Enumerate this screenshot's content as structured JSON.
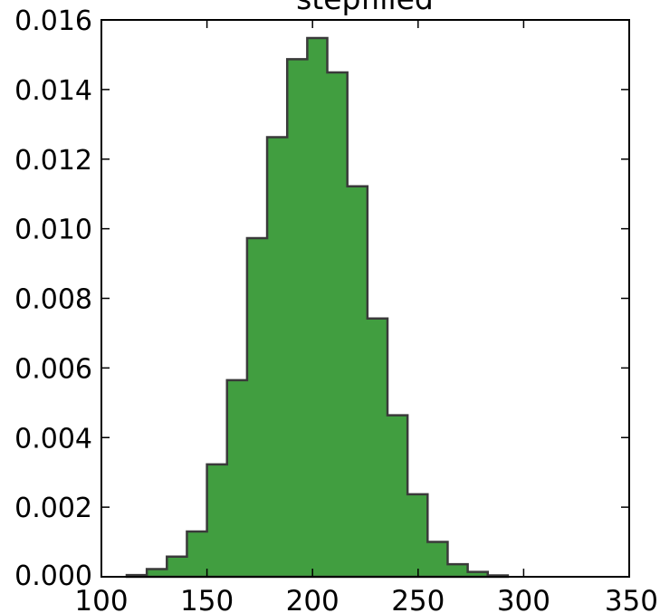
{
  "chart_data": {
    "type": "histogram",
    "histtype": "stepfilled",
    "title": "stepfilled",
    "xlabel": "",
    "ylabel": "",
    "xlim": [
      100,
      350
    ],
    "ylim": [
      0,
      0.016
    ],
    "grid": false,
    "xticks": [
      100,
      150,
      200,
      250,
      300,
      350
    ],
    "xtick_labels": [
      "100",
      "150",
      "200",
      "250",
      "300",
      "350"
    ],
    "yticks": [
      0,
      0.002,
      0.004,
      0.006,
      0.008,
      0.01,
      0.012,
      0.014,
      0.016
    ],
    "ytick_labels": [
      "0.000",
      "0.002",
      "0.004",
      "0.006",
      "0.008",
      "0.010",
      "0.012",
      "0.014",
      "0.016"
    ],
    "bin_edges": [
      112,
      121.5,
      131,
      140.5,
      150,
      159.5,
      169,
      178.5,
      188,
      197.5,
      207,
      216.5,
      226,
      235.5,
      245,
      254.5,
      264,
      273.5,
      283,
      292.5
    ],
    "values": [
      5e-05,
      0.00022,
      0.00058,
      0.0013,
      0.00323,
      0.00565,
      0.00973,
      0.01263,
      0.01487,
      0.01548,
      0.01449,
      0.01122,
      0.00742,
      0.00464,
      0.00237,
      0.001,
      0.00036,
      0.00014,
      4e-05
    ],
    "colors": {
      "fill": "#419e40",
      "edge": "#3a3a3a",
      "axes": "#000000"
    }
  }
}
